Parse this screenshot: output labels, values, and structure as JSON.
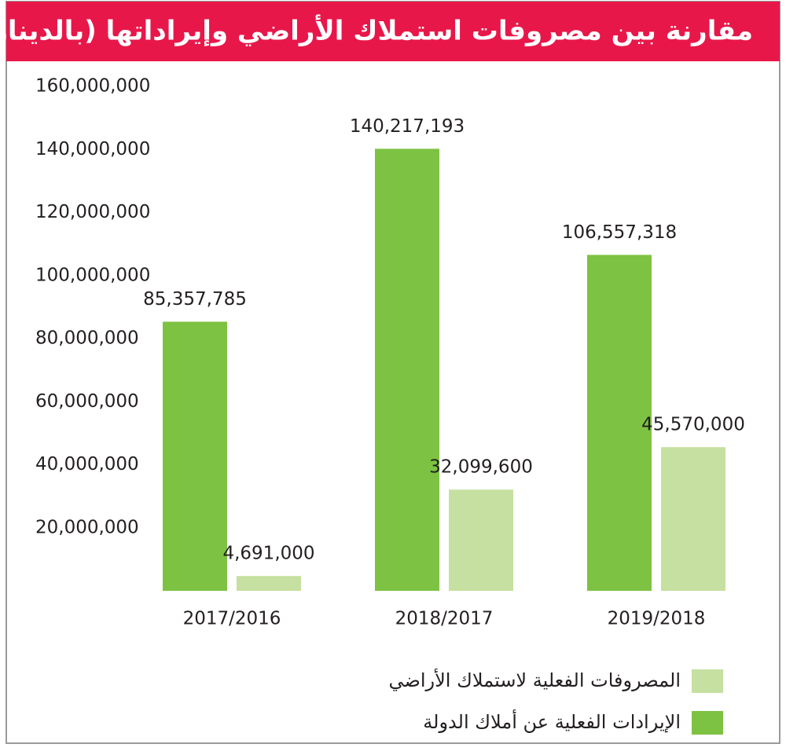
{
  "chart_data": {
    "type": "bar",
    "title": "مقارنة بين مصروفات استملاك الأراضي وإيراداتها (بالدينار)",
    "categories": [
      "2017/2016",
      "2018/2017",
      "2019/2018"
    ],
    "series": [
      {
        "name": "الإيرادات الفعلية عن أملاك الدولة",
        "color": "#7dc242",
        "values": [
          85357785,
          140217193,
          106557318
        ],
        "value_labels": [
          "85,357,785",
          "140,217,193",
          "106,557,318"
        ]
      },
      {
        "name": "المصروفات الفعلية لاستملاك الأراضي",
        "color": "#c5e0a0",
        "values": [
          4691000,
          32099600,
          45570000
        ],
        "value_labels": [
          "4,691,000",
          "32,099,600",
          "45,570,000"
        ]
      }
    ],
    "ylim": [
      0,
      160000000
    ],
    "yticks": [
      {
        "value": 20000000,
        "label": "20,000,000"
      },
      {
        "value": 40000000,
        "label": "40,000,000"
      },
      {
        "value": 60000000,
        "label": "60,000,000"
      },
      {
        "value": 80000000,
        "label": "80,000,000"
      },
      {
        "value": 100000000,
        "label": "100,000,000"
      },
      {
        "value": 120000000,
        "label": "120,000,000"
      },
      {
        "value": 140000000,
        "label": "140,000,000"
      },
      {
        "value": 160000000,
        "label": "160,000,000"
      }
    ],
    "grid": false
  }
}
